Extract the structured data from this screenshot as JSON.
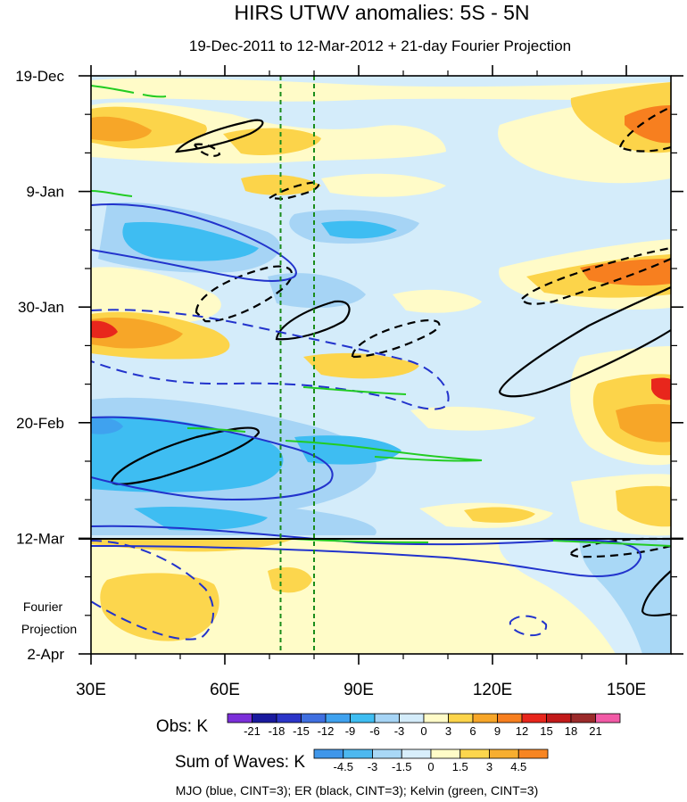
{
  "chart_data": {
    "type": "heatmap",
    "title": "HIRS UTWV anomalies: 5S - 5N",
    "subtitle": "19-Dec-2011 to 12-Mar-2012 + 21-day Fourier Projection",
    "x_ticks": [
      {
        "label": "30E",
        "value": 30
      },
      {
        "label": "60E",
        "value": 60
      },
      {
        "label": "90E",
        "value": 90
      },
      {
        "label": "120E",
        "value": 120
      },
      {
        "label": "150E",
        "value": 150
      }
    ],
    "xlim": [
      30,
      160
    ],
    "y_ticks": [
      {
        "label": "19-Dec",
        "day": 0
      },
      {
        "label": "9-Jan",
        "day": 21
      },
      {
        "label": "30-Jan",
        "day": 42
      },
      {
        "label": "20-Feb",
        "day": 63
      },
      {
        "label": "12-Mar",
        "day": 84
      },
      {
        "label": "2-Apr",
        "day": 105
      }
    ],
    "ylim_days": [
      0,
      105
    ],
    "observation_end_day": 84,
    "projection_label_line1": "Fourier",
    "projection_label_line2": "Projection",
    "reference_longitudes": [
      72.5,
      80
    ],
    "obs_colorbar": {
      "label": "Obs: K",
      "levels": [
        "-21",
        "-18",
        "-15",
        "-12",
        "-9",
        "-6",
        "-3",
        "0",
        "3",
        "6",
        "9",
        "12",
        "15",
        "18",
        "21"
      ],
      "colors": [
        "#7b2fd9",
        "#1a1a9e",
        "#2b35c8",
        "#3f6fe0",
        "#3fa2ef",
        "#3ebdf2",
        "#a6d4f5",
        "#d4ecfa",
        "#fffbc8",
        "#fcd44a",
        "#f7a628",
        "#f77f1f",
        "#e8261c",
        "#c21a1a",
        "#9b2a2a",
        "#f25aa6"
      ]
    },
    "waves_colorbar": {
      "label": "Sum of Waves: K",
      "levels": [
        "-4.5",
        "-3",
        "-1.5",
        "0",
        "1.5",
        "3",
        "4.5"
      ],
      "colors": [
        "#3f96e9",
        "#4db8ef",
        "#a9d8f6",
        "#d8eefb",
        "#fffcc8",
        "#fcd64d",
        "#f7ae30",
        "#f78522"
      ]
    },
    "contour_legend": "MJO (blue, CINT=3); ER (black, CINT=3); Kelvin (green, CINT=3)",
    "series": [
      {
        "name": "MJO",
        "color": "#2233cc"
      },
      {
        "name": "ER",
        "color": "#000000"
      },
      {
        "name": "Kelvin",
        "color": "#22cc22"
      }
    ]
  }
}
